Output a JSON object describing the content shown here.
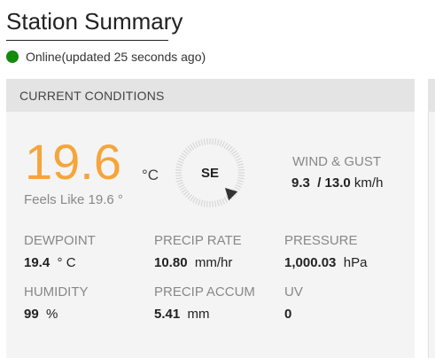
{
  "title": "Station Summary",
  "status": {
    "text": "Online(updated 25 seconds ago)",
    "color": "#138a0e"
  },
  "card": {
    "header": "CURRENT CONDITIONS"
  },
  "temperature": {
    "value": "19.6",
    "unit": "°C",
    "feels_like": "Feels Like 19.6 °",
    "color": "#f6a53a"
  },
  "wind": {
    "direction": "SE",
    "title": "WIND & GUST",
    "speed": "9.3",
    "separator": "/",
    "gust": "13.0",
    "unit": "km/h"
  },
  "metrics": {
    "dewpoint": {
      "label": "DEWPOINT",
      "value": "19.4",
      "unit": "° C"
    },
    "precip_rate": {
      "label": "PRECIP RATE",
      "value": "10.80",
      "unit": "mm/hr"
    },
    "pressure": {
      "label": "PRESSURE",
      "value": "1,000.03",
      "unit": "hPa"
    },
    "humidity": {
      "label": "HUMIDITY",
      "value": "99",
      "unit": "%"
    },
    "precip_accum": {
      "label": "PRECIP ACCUM",
      "value": "5.41",
      "unit": "mm"
    },
    "uv": {
      "label": "UV",
      "value": "0",
      "unit": ""
    }
  },
  "icons": {
    "status": "status-dot-icon",
    "compass": "compass-icon",
    "wind_arrow": "wind-direction-arrow-icon"
  }
}
